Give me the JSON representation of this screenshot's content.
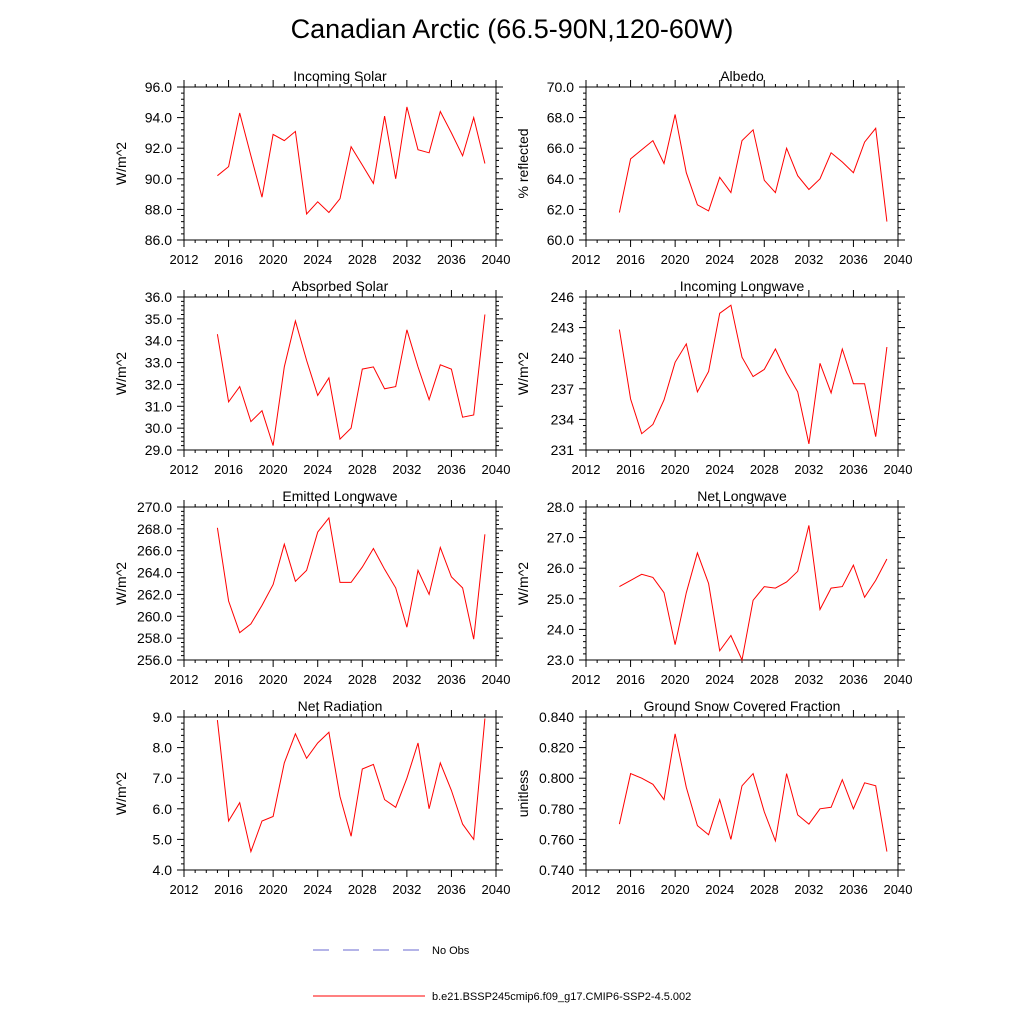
{
  "title": "Canadian Arctic (66.5-90N,120-60W)",
  "colors": {
    "model": "#ff0000",
    "obs": "#6a6ad0",
    "axis": "#000000"
  },
  "legend": [
    {
      "label": "No Obs",
      "style": "dashed",
      "color": "#6a6ad0"
    },
    {
      "label": "b.e21.BSSP245cmip6.f09_g17.CMIP6-SSP2-4.5.002",
      "style": "solid",
      "color": "#ff0000"
    }
  ],
  "chart_data": [
    {
      "type": "line",
      "title": "Incoming Solar",
      "ylabel": "W/m^2",
      "xlim": [
        2012,
        2040
      ],
      "ylim": [
        86,
        96
      ],
      "xticks": [
        "2012",
        "2016",
        "2020",
        "2024",
        "2028",
        "2032",
        "2036",
        "2040"
      ],
      "yticks": [
        "86.0",
        "88.0",
        "90.0",
        "92.0",
        "94.0",
        "96.0"
      ],
      "x": [
        2015,
        2016,
        2017,
        2018,
        2019,
        2020,
        2021,
        2022,
        2023,
        2024,
        2025,
        2026,
        2027,
        2028,
        2029,
        2030,
        2031,
        2032,
        2033,
        2034,
        2035,
        2036,
        2037,
        2038,
        2039
      ],
      "series": [
        {
          "name": "b.e21.BSSP245cmip6.f09_g17.CMIP6-SSP2-4.5.002",
          "values": [
            90.2,
            90.8,
            94.3,
            91.5,
            88.8,
            92.9,
            92.5,
            93.1,
            87.7,
            88.5,
            87.8,
            88.7,
            92.1,
            90.9,
            89.7,
            94.1,
            90.0,
            94.7,
            91.9,
            91.7,
            94.4,
            93.0,
            91.5,
            94.0,
            91.0
          ]
        }
      ]
    },
    {
      "type": "line",
      "title": "Albedo",
      "ylabel": "% reflected",
      "xlim": [
        2012,
        2040
      ],
      "ylim": [
        60,
        70
      ],
      "xticks": [
        "2012",
        "2016",
        "2020",
        "2024",
        "2028",
        "2032",
        "2036",
        "2040"
      ],
      "yticks": [
        "60.0",
        "62.0",
        "64.0",
        "66.0",
        "68.0",
        "70.0"
      ],
      "x": [
        2015,
        2016,
        2017,
        2018,
        2019,
        2020,
        2021,
        2022,
        2023,
        2024,
        2025,
        2026,
        2027,
        2028,
        2029,
        2030,
        2031,
        2032,
        2033,
        2034,
        2035,
        2036,
        2037,
        2038,
        2039
      ],
      "series": [
        {
          "name": "b.e21.BSSP245cmip6.f09_g17.CMIP6-SSP2-4.5.002",
          "values": [
            61.8,
            65.3,
            65.9,
            66.5,
            65.0,
            68.2,
            64.4,
            62.3,
            61.9,
            64.1,
            63.1,
            66.5,
            67.2,
            63.9,
            63.1,
            66.0,
            64.2,
            63.3,
            64.0,
            65.7,
            65.1,
            64.4,
            66.4,
            67.3,
            61.2
          ]
        }
      ]
    },
    {
      "type": "line",
      "title": "Absorbed Solar",
      "ylabel": "W/m^2",
      "xlim": [
        2012,
        2040
      ],
      "ylim": [
        29,
        36
      ],
      "xticks": [
        "2012",
        "2016",
        "2020",
        "2024",
        "2028",
        "2032",
        "2036",
        "2040"
      ],
      "yticks": [
        "29.0",
        "30.0",
        "31.0",
        "32.0",
        "33.0",
        "34.0",
        "35.0",
        "36.0"
      ],
      "x": [
        2015,
        2016,
        2017,
        2018,
        2019,
        2020,
        2021,
        2022,
        2023,
        2024,
        2025,
        2026,
        2027,
        2028,
        2029,
        2030,
        2031,
        2032,
        2033,
        2034,
        2035,
        2036,
        2037,
        2038,
        2039
      ],
      "series": [
        {
          "name": "b.e21.BSSP245cmip6.f09_g17.CMIP6-SSP2-4.5.002",
          "values": [
            34.3,
            31.2,
            31.9,
            30.3,
            30.8,
            29.2,
            32.8,
            34.9,
            33.1,
            31.5,
            32.3,
            29.5,
            30.0,
            32.7,
            32.8,
            31.8,
            31.9,
            34.5,
            32.8,
            31.3,
            32.9,
            32.7,
            30.5,
            30.6,
            35.2
          ]
        }
      ]
    },
    {
      "type": "line",
      "title": "Incoming Longwave",
      "ylabel": "W/m^2",
      "xlim": [
        2012,
        2040
      ],
      "ylim": [
        231,
        246
      ],
      "xticks": [
        "2012",
        "2016",
        "2020",
        "2024",
        "2028",
        "2032",
        "2036",
        "2040"
      ],
      "yticks": [
        "231",
        "234",
        "237",
        "240",
        "243",
        "246"
      ],
      "x": [
        2015,
        2016,
        2017,
        2018,
        2019,
        2020,
        2021,
        2022,
        2023,
        2024,
        2025,
        2026,
        2027,
        2028,
        2029,
        2030,
        2031,
        2032,
        2033,
        2034,
        2035,
        2036,
        2037,
        2038,
        2039
      ],
      "series": [
        {
          "name": "b.e21.BSSP245cmip6.f09_g17.CMIP6-SSP2-4.5.002",
          "values": [
            242.8,
            236.0,
            232.6,
            233.5,
            235.9,
            239.6,
            241.4,
            236.7,
            238.7,
            244.4,
            245.2,
            240.1,
            238.2,
            238.9,
            240.9,
            238.6,
            236.7,
            231.6,
            239.5,
            236.6,
            240.9,
            237.5,
            237.5,
            232.3,
            241.1
          ]
        }
      ]
    },
    {
      "type": "line",
      "title": "Emitted Longwave",
      "ylabel": "W/m^2",
      "xlim": [
        2012,
        2040
      ],
      "ylim": [
        256,
        270
      ],
      "xticks": [
        "2012",
        "2016",
        "2020",
        "2024",
        "2028",
        "2032",
        "2036",
        "2040"
      ],
      "yticks": [
        "256.0",
        "258.0",
        "260.0",
        "262.0",
        "264.0",
        "266.0",
        "268.0",
        "270.0"
      ],
      "x": [
        2015,
        2016,
        2017,
        2018,
        2019,
        2020,
        2021,
        2022,
        2023,
        2024,
        2025,
        2026,
        2027,
        2028,
        2029,
        2030,
        2031,
        2032,
        2033,
        2034,
        2035,
        2036,
        2037,
        2038,
        2039
      ],
      "series": [
        {
          "name": "b.e21.BSSP245cmip6.f09_g17.CMIP6-SSP2-4.5.002",
          "values": [
            268.1,
            261.4,
            258.5,
            259.3,
            261.0,
            262.9,
            266.6,
            263.2,
            264.2,
            267.7,
            269.0,
            263.1,
            263.1,
            264.5,
            266.2,
            264.3,
            262.6,
            259.0,
            264.2,
            262.0,
            266.3,
            263.6,
            262.6,
            257.9,
            267.5
          ]
        }
      ]
    },
    {
      "type": "line",
      "title": "Net Longwave",
      "ylabel": "W/m^2",
      "xlim": [
        2012,
        2040
      ],
      "ylim": [
        23,
        28
      ],
      "xticks": [
        "2012",
        "2016",
        "2020",
        "2024",
        "2028",
        "2032",
        "2036",
        "2040"
      ],
      "yticks": [
        "23.0",
        "24.0",
        "25.0",
        "26.0",
        "27.0",
        "28.0"
      ],
      "x": [
        2015,
        2016,
        2017,
        2018,
        2019,
        2020,
        2021,
        2022,
        2023,
        2024,
        2025,
        2026,
        2027,
        2028,
        2029,
        2030,
        2031,
        2032,
        2033,
        2034,
        2035,
        2036,
        2037,
        2038,
        2039
      ],
      "series": [
        {
          "name": "b.e21.BSSP245cmip6.f09_g17.CMIP6-SSP2-4.5.002",
          "values": [
            25.4,
            25.6,
            25.8,
            25.7,
            25.2,
            23.5,
            25.2,
            26.5,
            25.5,
            23.3,
            23.8,
            23.0,
            24.95,
            25.4,
            25.35,
            25.55,
            25.9,
            27.4,
            24.65,
            25.35,
            25.4,
            26.1,
            25.05,
            25.6,
            26.3
          ]
        }
      ]
    },
    {
      "type": "line",
      "title": "Net Radiation",
      "ylabel": "W/m^2",
      "xlim": [
        2012,
        2040
      ],
      "ylim": [
        4,
        9
      ],
      "xticks": [
        "2012",
        "2016",
        "2020",
        "2024",
        "2028",
        "2032",
        "2036",
        "2040"
      ],
      "yticks": [
        "4.0",
        "5.0",
        "6.0",
        "7.0",
        "8.0",
        "9.0"
      ],
      "x": [
        2015,
        2016,
        2017,
        2018,
        2019,
        2020,
        2021,
        2022,
        2023,
        2024,
        2025,
        2026,
        2027,
        2028,
        2029,
        2030,
        2031,
        2032,
        2033,
        2034,
        2035,
        2036,
        2037,
        2038,
        2039
      ],
      "series": [
        {
          "name": "b.e21.BSSP245cmip6.f09_g17.CMIP6-SSP2-4.5.002",
          "values": [
            8.9,
            5.6,
            6.2,
            4.6,
            5.6,
            5.75,
            7.5,
            8.45,
            7.65,
            8.15,
            8.5,
            6.4,
            5.1,
            7.3,
            7.45,
            6.3,
            6.05,
            7.0,
            8.15,
            6.0,
            7.5,
            6.6,
            5.5,
            5.0,
            8.95
          ]
        }
      ]
    },
    {
      "type": "line",
      "title": "Ground Snow Covered Fraction",
      "ylabel": "unitless",
      "xlim": [
        2012,
        2040
      ],
      "ylim": [
        0.74,
        0.84
      ],
      "xticks": [
        "2012",
        "2016",
        "2020",
        "2024",
        "2028",
        "2032",
        "2036",
        "2040"
      ],
      "yticks": [
        "0.740",
        "0.760",
        "0.780",
        "0.800",
        "0.820",
        "0.840"
      ],
      "x": [
        2015,
        2016,
        2017,
        2018,
        2019,
        2020,
        2021,
        2022,
        2023,
        2024,
        2025,
        2026,
        2027,
        2028,
        2029,
        2030,
        2031,
        2032,
        2033,
        2034,
        2035,
        2036,
        2037,
        2038,
        2039
      ],
      "series": [
        {
          "name": "b.e21.BSSP245cmip6.f09_g17.CMIP6-SSP2-4.5.002",
          "values": [
            0.77,
            0.803,
            0.8,
            0.796,
            0.786,
            0.829,
            0.794,
            0.769,
            0.763,
            0.786,
            0.76,
            0.795,
            0.803,
            0.778,
            0.759,
            0.803,
            0.776,
            0.77,
            0.78,
            0.781,
            0.799,
            0.78,
            0.797,
            0.795,
            0.752
          ]
        }
      ]
    }
  ]
}
